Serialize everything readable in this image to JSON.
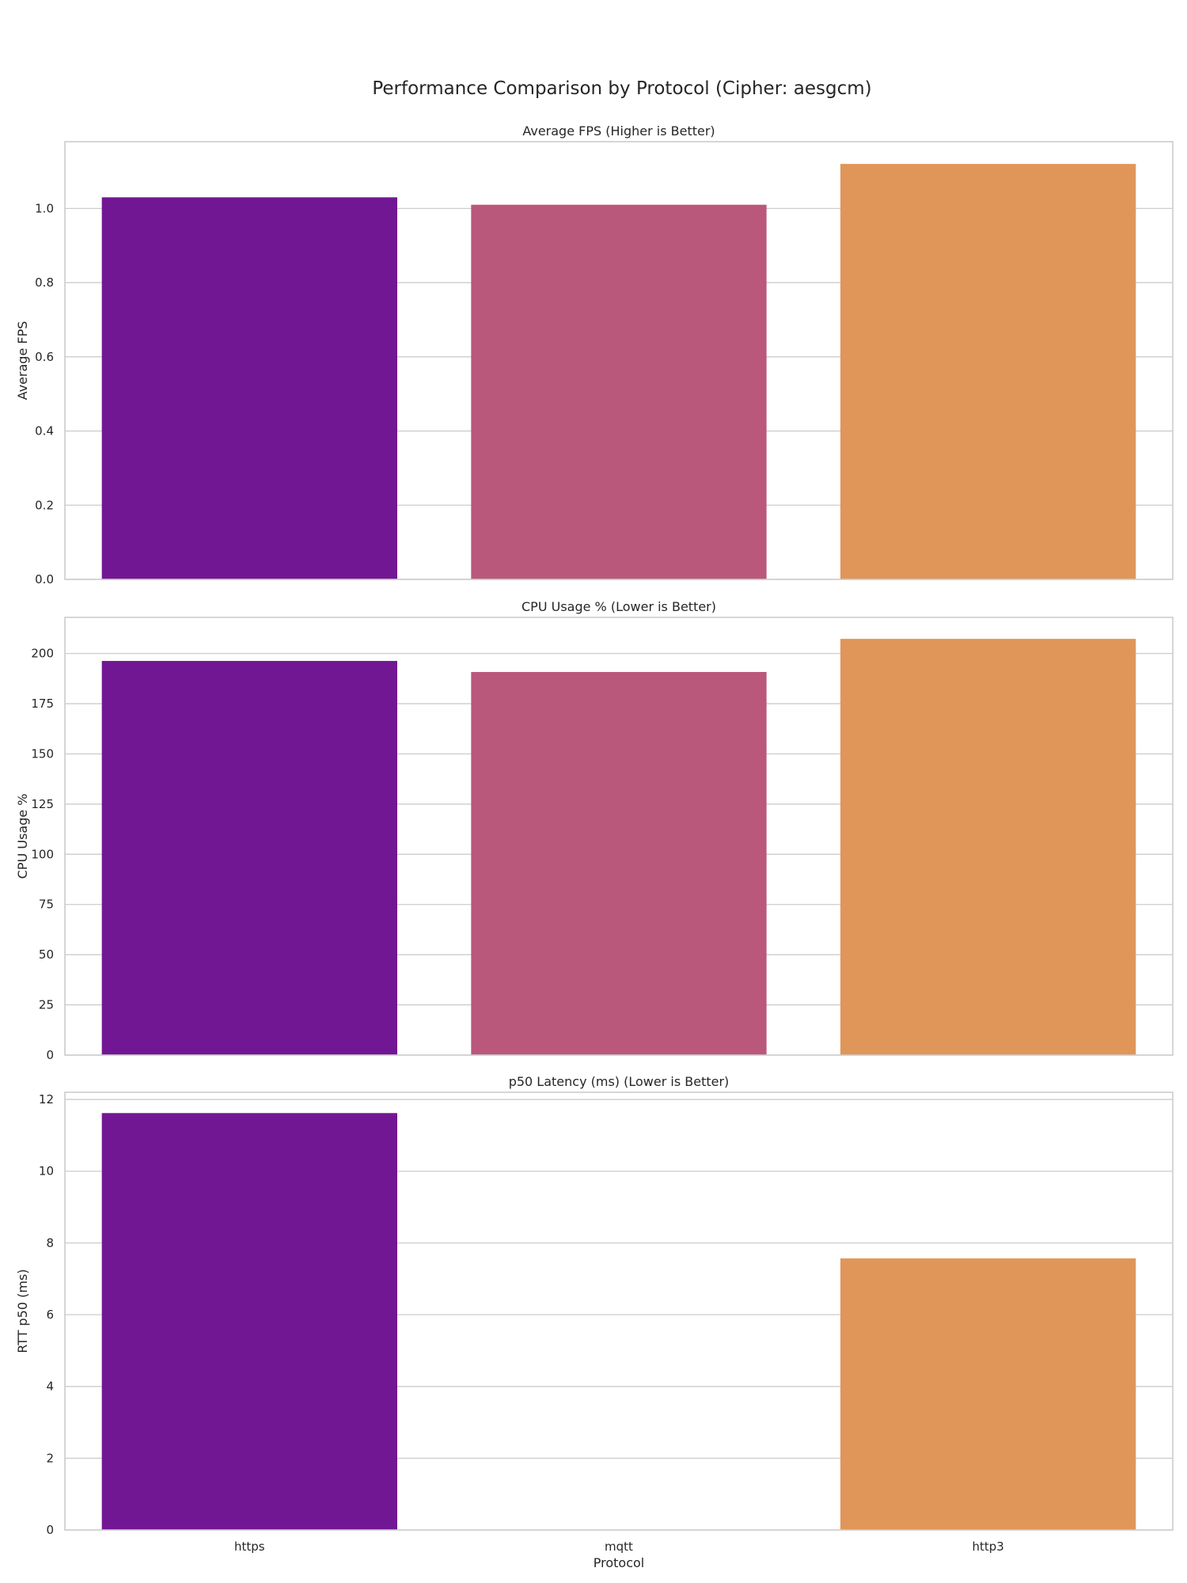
{
  "figure": {
    "title": "Performance Comparison by Protocol (Cipher: aesgcm)"
  },
  "colors": [
    "#721793",
    "#ba587b",
    "#e09659"
  ],
  "chart_data": [
    {
      "type": "bar",
      "title": "Average FPS (Higher is Better)",
      "xlabel": "",
      "ylabel": "Average FPS",
      "categories": [
        "https",
        "mqtt",
        "http3"
      ],
      "values": [
        1.03,
        1.01,
        1.12
      ],
      "ylim": [
        0,
        1.18
      ],
      "yticks": [
        "0.0",
        "0.2",
        "0.4",
        "0.6",
        "0.8",
        "1.0"
      ],
      "ytick_values": [
        0,
        0.2,
        0.4,
        0.6,
        0.8,
        1.0
      ],
      "show_xticklabels": false,
      "grid": true
    },
    {
      "type": "bar",
      "title": "CPU Usage % (Lower is Better)",
      "xlabel": "",
      "ylabel": "CPU Usage %",
      "categories": [
        "https",
        "mqtt",
        "http3"
      ],
      "values": [
        196.3,
        190.8,
        207.3
      ],
      "ylim": [
        0,
        218
      ],
      "yticks": [
        "0",
        "25",
        "50",
        "75",
        "100",
        "125",
        "150",
        "175",
        "200"
      ],
      "ytick_values": [
        0,
        25,
        50,
        75,
        100,
        125,
        150,
        175,
        200
      ],
      "show_xticklabels": false,
      "grid": true
    },
    {
      "type": "bar",
      "title": "p50 Latency (ms) (Lower is Better)",
      "xlabel": "Protocol",
      "ylabel": "RTT p50 (ms)",
      "categories": [
        "https",
        "mqtt",
        "http3"
      ],
      "values": [
        11.62,
        0,
        7.57
      ],
      "ylim": [
        0,
        12.2
      ],
      "yticks": [
        "0",
        "2",
        "4",
        "6",
        "8",
        "10",
        "12"
      ],
      "ytick_values": [
        0,
        2,
        4,
        6,
        8,
        10,
        12
      ],
      "show_xticklabels": true,
      "grid": true
    }
  ]
}
